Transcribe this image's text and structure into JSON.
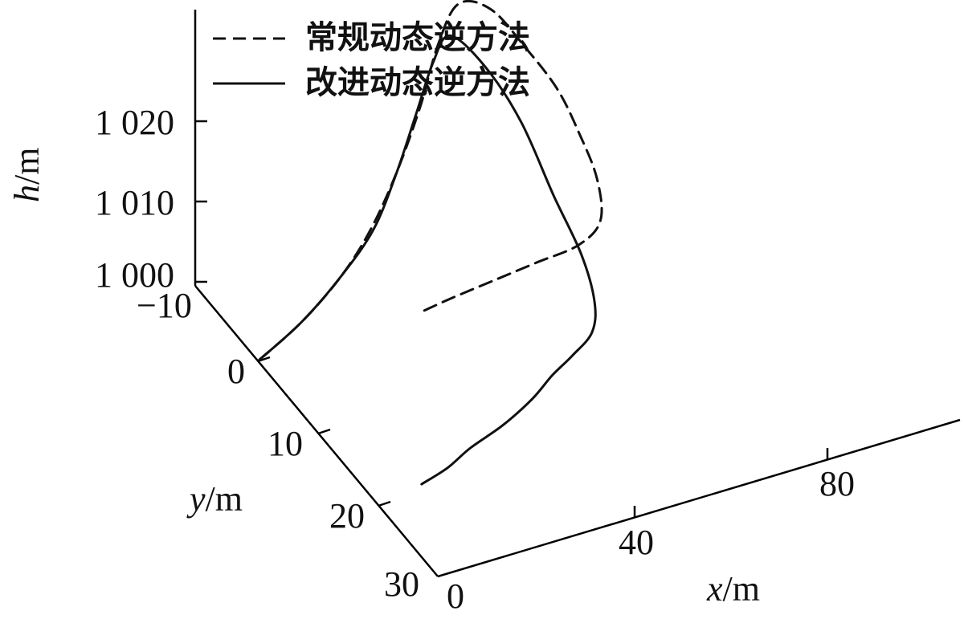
{
  "chart_data": {
    "type": "line3d",
    "axes": {
      "x": {
        "label_var": "x",
        "label_unit": "/m",
        "ticks": [
          0,
          40,
          80
        ],
        "tick_labels": [
          "0",
          "40",
          "80"
        ]
      },
      "y": {
        "label_var": "y",
        "label_unit": "/m",
        "ticks": [
          -10,
          0,
          10,
          20,
          30
        ],
        "tick_labels": [
          "−10",
          "0",
          "10",
          "20",
          "30"
        ]
      },
      "h": {
        "label_var": "h",
        "label_unit": "/m",
        "ticks": [
          1000,
          1010,
          1020
        ],
        "tick_labels": [
          "1 000",
          "1 010",
          "1 020"
        ]
      }
    },
    "legend": {
      "placement": "top-left",
      "entries": [
        {
          "label": "常规动态逆方法",
          "style": "dashed",
          "color": "#111111"
        },
        {
          "label": "改进动态逆方法",
          "style": "solid",
          "color": "#111111"
        }
      ]
    },
    "series": [
      {
        "name": "常规动态逆方法",
        "style": "dashed",
        "points": [
          [
            0,
            0,
            1000
          ],
          [
            10,
            -1,
            1002
          ],
          [
            20,
            -2.5,
            1004.5
          ],
          [
            28,
            -4,
            1007.5
          ],
          [
            36,
            -6,
            1011.5
          ],
          [
            44,
            -8.5,
            1016
          ],
          [
            52,
            -12,
            1019
          ],
          [
            60,
            -15,
            1020
          ],
          [
            68,
            -16,
            1017
          ],
          [
            74,
            -15,
            1012
          ],
          [
            78,
            -13,
            1008
          ],
          [
            80,
            -11,
            1004
          ],
          [
            80,
            -8,
            1001
          ],
          [
            77,
            -5,
            999
          ],
          [
            70,
            -3,
            999
          ],
          [
            60,
            -2,
            999.5
          ],
          [
            50,
            -1,
            1000
          ],
          [
            40,
            0,
            1000.5
          ],
          [
            32,
            1,
            1001
          ]
        ]
      },
      {
        "name": "改进动态逆方法",
        "style": "solid",
        "points": [
          [
            0,
            0,
            1000
          ],
          [
            10,
            -1,
            1002
          ],
          [
            20,
            -2.5,
            1004.5
          ],
          [
            28,
            -3.5,
            1008
          ],
          [
            34,
            -4.5,
            1013
          ],
          [
            40,
            -6,
            1018
          ],
          [
            46,
            -8,
            1021.5
          ],
          [
            52,
            -10,
            1022
          ],
          [
            58,
            -9,
            1018
          ],
          [
            63,
            -7,
            1012
          ],
          [
            66,
            -4,
            1005
          ],
          [
            68,
            -1,
            1000
          ],
          [
            67,
            2,
            997
          ],
          [
            64,
            4,
            995.5
          ],
          [
            58,
            5.5,
            995
          ],
          [
            52,
            7,
            995
          ],
          [
            46,
            8.5,
            994.5
          ],
          [
            38,
            10,
            994
          ],
          [
            30,
            11,
            993.5
          ],
          [
            24,
            12,
            993
          ],
          [
            18,
            12.5,
            992.5
          ]
        ]
      }
    ],
    "grid": false
  }
}
